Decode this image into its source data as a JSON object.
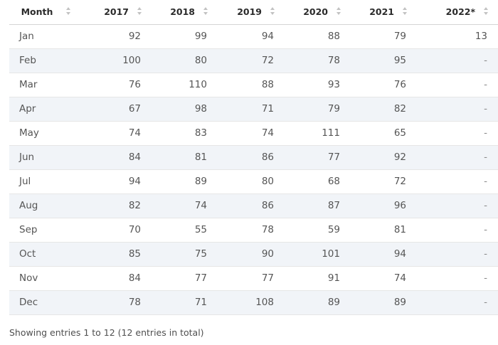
{
  "table": {
    "columns": [
      {
        "key": "month",
        "label": "Month"
      },
      {
        "key": "y2017",
        "label": "2017"
      },
      {
        "key": "y2018",
        "label": "2018"
      },
      {
        "key": "y2019",
        "label": "2019"
      },
      {
        "key": "y2020",
        "label": "2020"
      },
      {
        "key": "y2021",
        "label": "2021"
      },
      {
        "key": "y2022",
        "label": "2022*"
      }
    ],
    "rows": [
      [
        "Jan",
        "92",
        "99",
        "94",
        "88",
        "79",
        "13"
      ],
      [
        "Feb",
        "100",
        "80",
        "72",
        "78",
        "95",
        "-"
      ],
      [
        "Mar",
        "76",
        "110",
        "88",
        "93",
        "76",
        "-"
      ],
      [
        "Apr",
        "67",
        "98",
        "71",
        "79",
        "82",
        "-"
      ],
      [
        "May",
        "74",
        "83",
        "74",
        "111",
        "65",
        "-"
      ],
      [
        "Jun",
        "84",
        "81",
        "86",
        "77",
        "92",
        "-"
      ],
      [
        "Jul",
        "94",
        "89",
        "80",
        "68",
        "72",
        "-"
      ],
      [
        "Aug",
        "82",
        "74",
        "86",
        "87",
        "96",
        "-"
      ],
      [
        "Sep",
        "70",
        "55",
        "78",
        "59",
        "81",
        "-"
      ],
      [
        "Oct",
        "85",
        "75",
        "90",
        "101",
        "94",
        "-"
      ],
      [
        "Nov",
        "84",
        "77",
        "77",
        "91",
        "74",
        "-"
      ],
      [
        "Dec",
        "78",
        "71",
        "108",
        "89",
        "89",
        "-"
      ]
    ],
    "sort_icon": "sort-updown-icon"
  },
  "footer": {
    "info": "Showing entries 1 to 12 (12 entries in total)"
  },
  "colors": {
    "row_stripe": "#f1f4f8",
    "header_border": "#d4d4d4",
    "sort_icon": "#c2c2c2"
  }
}
